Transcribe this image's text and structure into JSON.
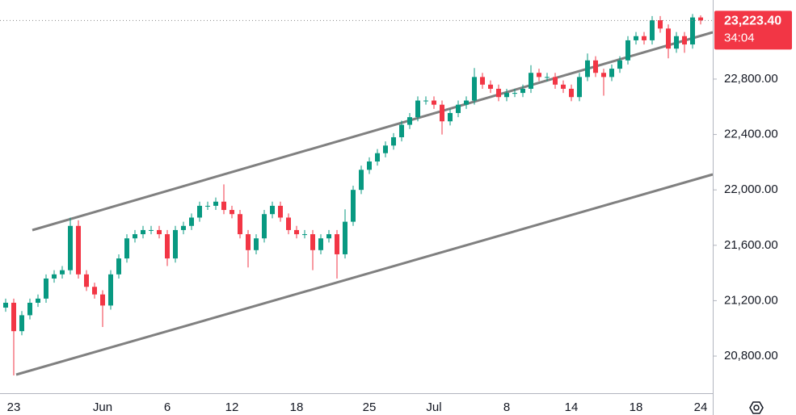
{
  "chart_data": {
    "type": "candlestick",
    "categories": [
      null,
      "23",
      null,
      null,
      null,
      null,
      null,
      null,
      null,
      null,
      null,
      null,
      "Jun",
      null,
      null,
      null,
      null,
      null,
      null,
      null,
      "6",
      null,
      null,
      null,
      null,
      null,
      null,
      null,
      "12",
      null,
      null,
      null,
      null,
      null,
      null,
      null,
      "18",
      null,
      null,
      null,
      null,
      null,
      null,
      null,
      null,
      "25",
      null,
      null,
      null,
      null,
      null,
      null,
      null,
      "Jul",
      null,
      null,
      null,
      null,
      null,
      null,
      null,
      null,
      "8",
      null,
      null,
      null,
      null,
      null,
      null,
      null,
      "14",
      null,
      null,
      null,
      null,
      null,
      null,
      null,
      "18",
      null,
      null,
      null,
      null,
      null,
      null,
      null,
      "24"
    ],
    "open": [
      21150,
      21185,
      20980,
      21095,
      21185,
      21215,
      21360,
      21390,
      21420,
      21740,
      21390,
      21300,
      21245,
      21165,
      21390,
      21505,
      21650,
      21680,
      21710,
      21710,
      21680,
      21505,
      21710,
      21740,
      21800,
      21885,
      21885,
      21915,
      21855,
      21825,
      21680,
      21565,
      21650,
      21825,
      21885,
      21800,
      21710,
      21680,
      21680,
      21565,
      21650,
      21680,
      21535,
      21770,
      22000,
      22145,
      22205,
      22265,
      22320,
      22380,
      22470,
      22525,
      22645,
      22645,
      22615,
      22495,
      22555,
      22615,
      22645,
      22815,
      22760,
      22730,
      22670,
      22700,
      22700,
      22730,
      22845,
      22815,
      22815,
      22760,
      22730,
      22670,
      22815,
      22935,
      22845,
      22815,
      22875,
      22935,
      23080,
      23110,
      23080,
      23225,
      23165,
      23020,
      23110,
      23050,
      23245
    ],
    "high": [
      21215,
      21215,
      21125,
      21215,
      21245,
      21390,
      21420,
      21450,
      21800,
      21780,
      21420,
      21330,
      21275,
      21420,
      21535,
      21680,
      21710,
      21740,
      21740,
      21740,
      21710,
      21740,
      21770,
      21830,
      21915,
      21915,
      21945,
      22040,
      21885,
      21855,
      21710,
      21680,
      21855,
      21915,
      21915,
      21830,
      21740,
      21710,
      21710,
      21680,
      21710,
      21710,
      21860,
      22030,
      22175,
      22235,
      22295,
      22350,
      22410,
      22500,
      22555,
      22675,
      22675,
      22675,
      22645,
      22585,
      22645,
      22675,
      22880,
      22845,
      22790,
      22760,
      22730,
      22730,
      22760,
      22900,
      22875,
      22845,
      22845,
      22790,
      22760,
      22845,
      22985,
      22965,
      22875,
      22905,
      22965,
      23110,
      23140,
      23140,
      23255,
      23255,
      23195,
      23140,
      23140,
      23270,
      23260
    ],
    "low": [
      21120,
      20660,
      20950,
      21065,
      21155,
      21185,
      21330,
      21360,
      21390,
      21360,
      21270,
      21215,
      21010,
      21135,
      21360,
      21475,
      21620,
      21650,
      21680,
      21650,
      21450,
      21475,
      21680,
      21710,
      21770,
      21855,
      21855,
      21825,
      21795,
      21650,
      21440,
      21535,
      21620,
      21795,
      21770,
      21680,
      21650,
      21650,
      21420,
      21535,
      21620,
      21360,
      21505,
      21740,
      21970,
      22115,
      22175,
      22235,
      22290,
      22350,
      22440,
      22495,
      22615,
      22585,
      22400,
      22465,
      22525,
      22585,
      22615,
      22730,
      22700,
      22640,
      22640,
      22670,
      22670,
      22700,
      22785,
      22785,
      22730,
      22700,
      22640,
      22640,
      22785,
      22815,
      22680,
      22785,
      22845,
      22905,
      23050,
      23050,
      23050,
      23135,
      22950,
      22990,
      22990,
      23020,
      23195
    ],
    "close": [
      21185,
      20980,
      21095,
      21185,
      21215,
      21360,
      21390,
      21420,
      21740,
      21390,
      21300,
      21245,
      21165,
      21390,
      21505,
      21650,
      21680,
      21710,
      21710,
      21680,
      21505,
      21710,
      21740,
      21800,
      21885,
      21885,
      21915,
      21855,
      21825,
      21680,
      21565,
      21650,
      21825,
      21885,
      21800,
      21710,
      21680,
      21680,
      21565,
      21650,
      21680,
      21535,
      21770,
      22000,
      22145,
      22205,
      22265,
      22320,
      22380,
      22470,
      22525,
      22645,
      22645,
      22615,
      22495,
      22555,
      22615,
      22645,
      22815,
      22760,
      22730,
      22670,
      22700,
      22700,
      22730,
      22845,
      22815,
      22815,
      22760,
      22730,
      22670,
      22815,
      22935,
      22845,
      22815,
      22875,
      22935,
      23080,
      23110,
      23080,
      23225,
      23165,
      23020,
      23110,
      23050,
      23245,
      23223.4
    ],
    "up_color": "#089981",
    "down_color": "#f23645",
    "ylim": [
      20532,
      23371
    ],
    "yticks": [
      {
        "value": 20800,
        "label": "20,800.00"
      },
      {
        "value": 21200,
        "label": "21,200.00"
      },
      {
        "value": 21600,
        "label": "21,600.00"
      },
      {
        "value": 22000,
        "label": "22,000.00"
      },
      {
        "value": 22400,
        "label": "22,400.00"
      },
      {
        "value": 22800,
        "label": "22,800.00"
      }
    ],
    "last_price": 23223.4,
    "last_price_label": "23,223.40",
    "countdown": "34:04",
    "last_price_color": "#f23645"
  }
}
